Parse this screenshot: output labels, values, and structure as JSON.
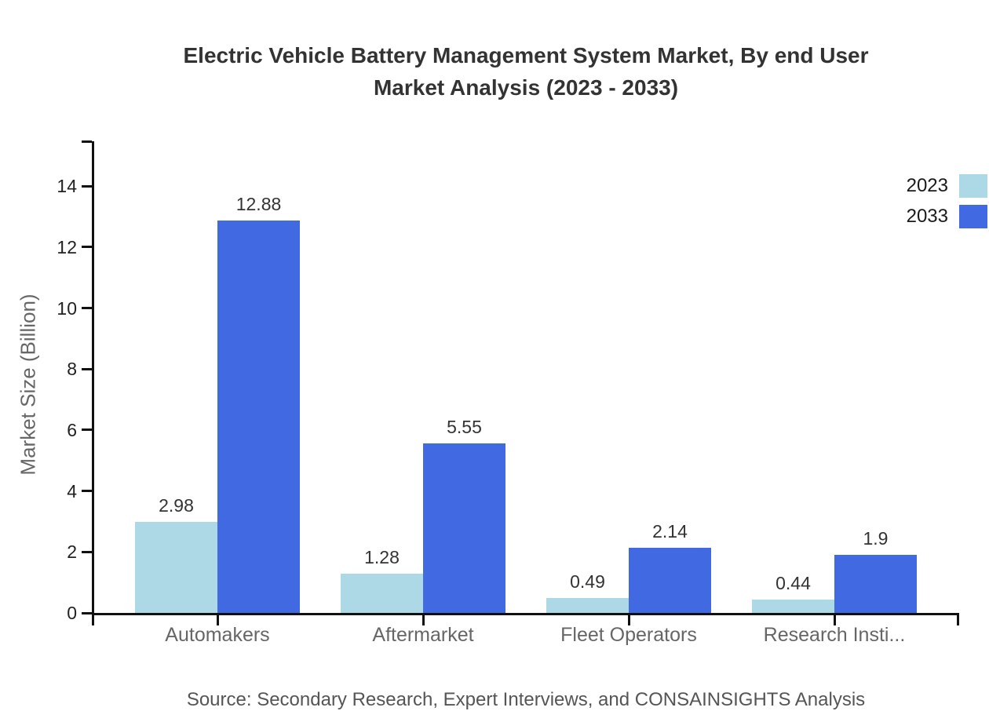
{
  "title": {
    "line1": "Electric Vehicle Battery Management System Market, By end User",
    "line2": "Market Analysis (2023 - 2033)"
  },
  "legend": {
    "items": [
      {
        "label": "2023",
        "color": "#ADD8E6"
      },
      {
        "label": "2033",
        "color": "#4169E1"
      }
    ]
  },
  "chart_data": {
    "type": "bar",
    "categories": [
      "Automakers",
      "Aftermarket",
      "Fleet Operators",
      "Research Insti..."
    ],
    "series": [
      {
        "name": "2023",
        "color": "#ADD8E6",
        "values": [
          2.98,
          1.28,
          0.49,
          0.44
        ]
      },
      {
        "name": "2033",
        "color": "#4169E1",
        "values": [
          12.88,
          5.55,
          2.14,
          1.9
        ]
      }
    ],
    "title": "Electric Vehicle Battery Management System Market, By end User Market Analysis (2023 - 2033)",
    "xlabel": "",
    "ylabel": "Market Size (Billion)",
    "ylim": [
      0,
      15.47
    ],
    "yticks": [
      0,
      2,
      4,
      6,
      8,
      10,
      12,
      14
    ],
    "grid": false,
    "legend_position": "top-right",
    "value_labels": true
  },
  "source": "Source: Secondary Research, Expert Interviews, and CONSAINSIGHTS Analysis"
}
